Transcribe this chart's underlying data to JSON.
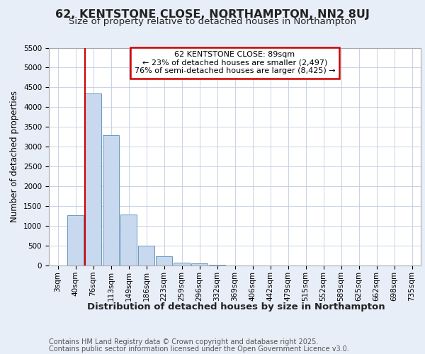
{
  "title1": "62, KENTSTONE CLOSE, NORTHAMPTON, NN2 8UJ",
  "title2": "Size of property relative to detached houses in Northampton",
  "xlabel": "Distribution of detached houses by size in Northampton",
  "ylabel": "Number of detached properties",
  "categories": [
    "3sqm",
    "40sqm",
    "76sqm",
    "113sqm",
    "149sqm",
    "186sqm",
    "223sqm",
    "259sqm",
    "296sqm",
    "332sqm",
    "369sqm",
    "406sqm",
    "442sqm",
    "479sqm",
    "515sqm",
    "552sqm",
    "589sqm",
    "625sqm",
    "662sqm",
    "698sqm",
    "735sqm"
  ],
  "values": [
    0,
    1270,
    4350,
    3300,
    1290,
    500,
    230,
    80,
    50,
    15,
    0,
    0,
    0,
    0,
    0,
    0,
    0,
    0,
    0,
    0,
    0
  ],
  "bar_color": "#c8d8ee",
  "bar_edge_color": "#6699bb",
  "bar_edge_width": 0.7,
  "marker_line_color": "#cc0000",
  "marker_bin_index": 2,
  "annotation_text": "62 KENTSTONE CLOSE: 89sqm\n← 23% of detached houses are smaller (2,497)\n76% of semi-detached houses are larger (8,425) →",
  "annotation_box_color": "#ffffff",
  "annotation_box_edge_color": "#cc0000",
  "ylim": [
    0,
    5500
  ],
  "yticks": [
    0,
    500,
    1000,
    1500,
    2000,
    2500,
    3000,
    3500,
    4000,
    4500,
    5000,
    5500
  ],
  "background_color": "#e8eef8",
  "plot_background_color": "#ffffff",
  "grid_color": "#c0cce0",
  "footer_line1": "Contains HM Land Registry data © Crown copyright and database right 2025.",
  "footer_line2": "Contains public sector information licensed under the Open Government Licence v3.0.",
  "title1_fontsize": 11.5,
  "title2_fontsize": 9.5,
  "xlabel_fontsize": 9.5,
  "ylabel_fontsize": 8.5,
  "tick_fontsize": 7.5,
  "annotation_fontsize": 8,
  "footer_fontsize": 7
}
